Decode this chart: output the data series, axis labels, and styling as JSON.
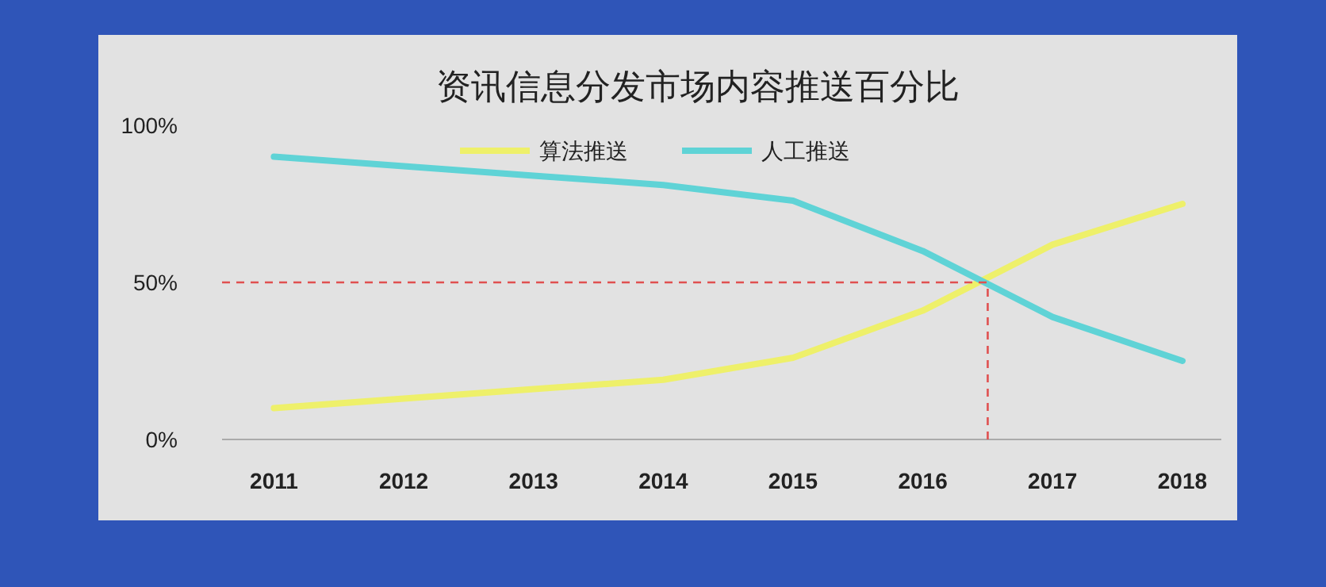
{
  "chart_data": {
    "type": "line",
    "title": "资讯信息分发市场内容推送百分比",
    "x": [
      2011,
      2012,
      2013,
      2014,
      2015,
      2016,
      2017,
      2018
    ],
    "series": [
      {
        "name": "算法推送",
        "color": "#eef06a",
        "values": [
          10,
          13,
          16,
          19,
          26,
          41,
          62,
          75
        ]
      },
      {
        "name": "人工推送",
        "color": "#5fd3d6",
        "values": [
          90,
          87,
          84,
          81,
          76,
          60,
          39,
          25
        ]
      }
    ],
    "xlim": [
      2010.6,
      2018.3
    ],
    "xticks": [
      2011,
      2012,
      2013,
      2014,
      2015,
      2016,
      2017,
      2018
    ],
    "ylim": [
      0,
      100
    ],
    "yticks": [
      {
        "value": 0,
        "label": "0%"
      },
      {
        "value": 50,
        "label": "50%"
      },
      {
        "value": 100,
        "label": "100%"
      }
    ],
    "ref_lines": [
      {
        "axis": "y",
        "value": 50,
        "color": "#e05050",
        "line_style": "dashed"
      },
      {
        "axis": "x",
        "value": 2016.5,
        "color": "#e05050",
        "line_style": "dashed"
      }
    ],
    "legend": "top",
    "grid": false,
    "marker": "none",
    "line_style": "solid"
  }
}
